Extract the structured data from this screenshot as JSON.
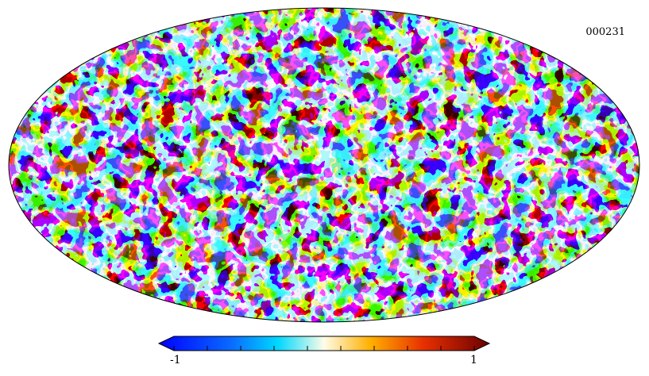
{
  "map": {
    "id_label": "000231",
    "projection": "mollweide",
    "colormap": "jet",
    "colors": {
      "low": "#0a14f5",
      "high": "#6b0000",
      "outline": "#000000"
    }
  },
  "colorbar": {
    "min_label": "-1",
    "max_label": "1",
    "min": -1,
    "max": 1,
    "minor_ticks": 9
  }
}
